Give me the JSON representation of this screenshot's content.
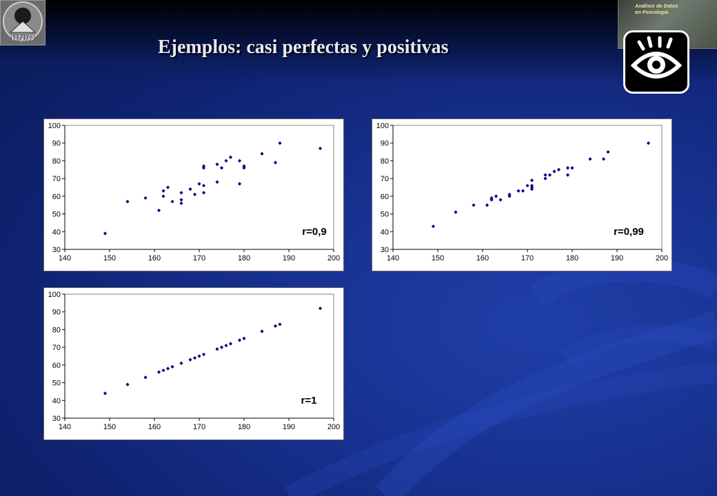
{
  "slide": {
    "title": "Ejemplos: casi perfectas y positivas",
    "logo_text": "UNIO",
    "book_title_line1": "Análisis de Datos",
    "book_title_line2": "en Psicología",
    "eye_icon": "eye-icon"
  },
  "colors": {
    "background": "#17318f",
    "title_text": "#e8e8f2",
    "marker": "#00007f",
    "plot_area": "#ffffff"
  },
  "chart_data": [
    {
      "type": "scatter",
      "title": "",
      "xlabel": "",
      "ylabel": "",
      "xlim": [
        140,
        200
      ],
      "ylim": [
        30,
        100
      ],
      "xticks": [
        140,
        150,
        160,
        170,
        180,
        190,
        200
      ],
      "yticks": [
        30,
        40,
        50,
        60,
        70,
        80,
        90,
        100
      ],
      "grid": false,
      "legend": "none",
      "annotation": "r=0,9",
      "x": [
        149,
        154,
        158,
        161,
        162,
        162,
        163,
        164,
        166,
        166,
        166,
        168,
        169,
        170,
        171,
        171,
        171,
        171,
        174,
        174,
        175,
        176,
        177,
        179,
        179,
        180,
        180,
        184,
        187,
        188,
        197
      ],
      "y": [
        39,
        57,
        59,
        52,
        63,
        60,
        65,
        57,
        62,
        58,
        56,
        64,
        61,
        67,
        66,
        62,
        77,
        76,
        68,
        78,
        76,
        80,
        82,
        80,
        67,
        77,
        76,
        84,
        79,
        90,
        87
      ]
    },
    {
      "type": "scatter",
      "title": "",
      "xlabel": "",
      "ylabel": "",
      "xlim": [
        140,
        200
      ],
      "ylim": [
        30,
        100
      ],
      "xticks": [
        140,
        150,
        160,
        170,
        180,
        190,
        200
      ],
      "yticks": [
        30,
        40,
        50,
        60,
        70,
        80,
        90,
        100
      ],
      "grid": false,
      "legend": "none",
      "annotation": "r=0,99",
      "x": [
        149,
        154,
        158,
        161,
        162,
        162,
        163,
        164,
        166,
        166,
        168,
        169,
        170,
        171,
        171,
        171,
        171,
        174,
        174,
        175,
        176,
        177,
        179,
        179,
        180,
        184,
        187,
        188,
        197
      ],
      "y": [
        43,
        51,
        55,
        55,
        59,
        58,
        60,
        58,
        61,
        60,
        63,
        63,
        66,
        65,
        66,
        69,
        64,
        72,
        70,
        72,
        74,
        75,
        76,
        72,
        76,
        81,
        81,
        85,
        90
      ]
    },
    {
      "type": "scatter",
      "title": "",
      "xlabel": "",
      "ylabel": "",
      "xlim": [
        140,
        200
      ],
      "ylim": [
        30,
        100
      ],
      "xticks": [
        140,
        150,
        160,
        170,
        180,
        190,
        200
      ],
      "yticks": [
        30,
        40,
        50,
        60,
        70,
        80,
        90,
        100
      ],
      "grid": false,
      "legend": "none",
      "annotation": "r=1",
      "x": [
        149,
        154,
        158,
        161,
        162,
        163,
        164,
        166,
        168,
        169,
        170,
        171,
        174,
        175,
        176,
        177,
        179,
        180,
        184,
        187,
        188,
        197
      ],
      "y": [
        44,
        49,
        53,
        56,
        57,
        58,
        59,
        61,
        63,
        64,
        65,
        66,
        69,
        70,
        71,
        72,
        74,
        75,
        79,
        82,
        83,
        92
      ]
    }
  ]
}
